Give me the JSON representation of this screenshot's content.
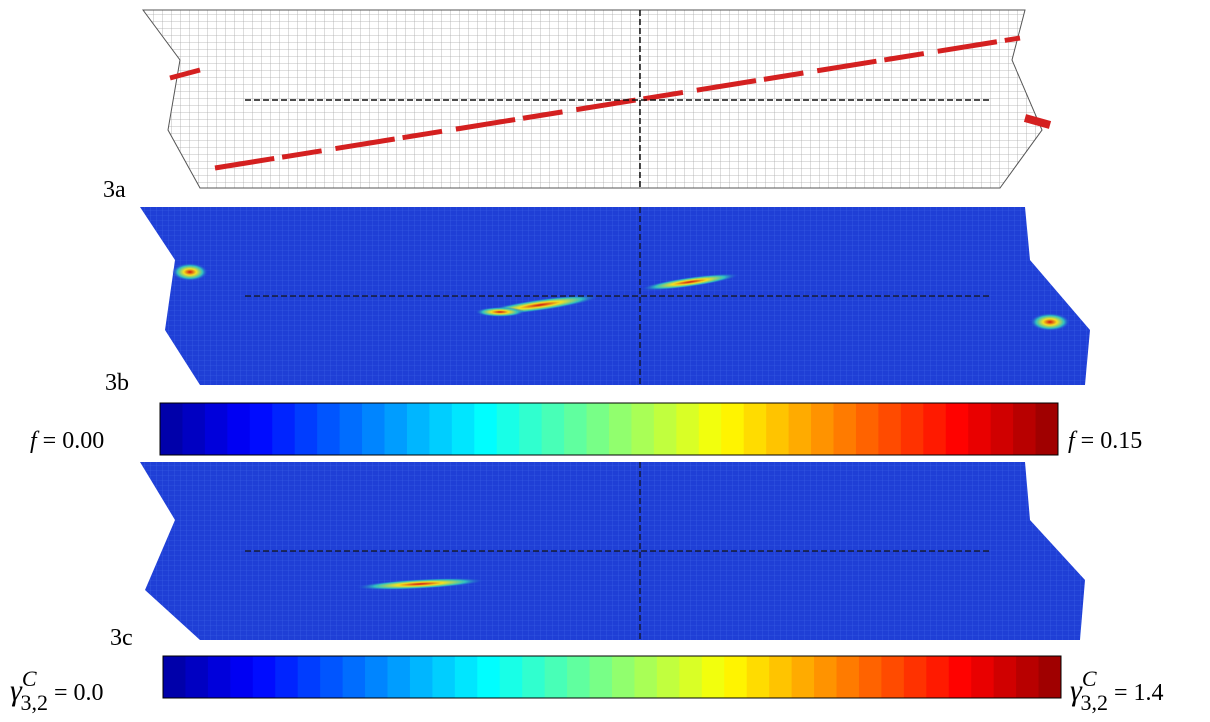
{
  "panels": [
    {
      "label": "3a"
    },
    {
      "label": "3b"
    },
    {
      "label": "3c"
    }
  ],
  "colorbars": [
    {
      "symbol": "f",
      "min_text": "= 0.00",
      "max_text": "= 0.15"
    },
    {
      "symbol": "γ",
      "sup": "C",
      "sub": "3,2",
      "min_text": "= 0.0",
      "max_text": "= 1.4"
    }
  ]
}
